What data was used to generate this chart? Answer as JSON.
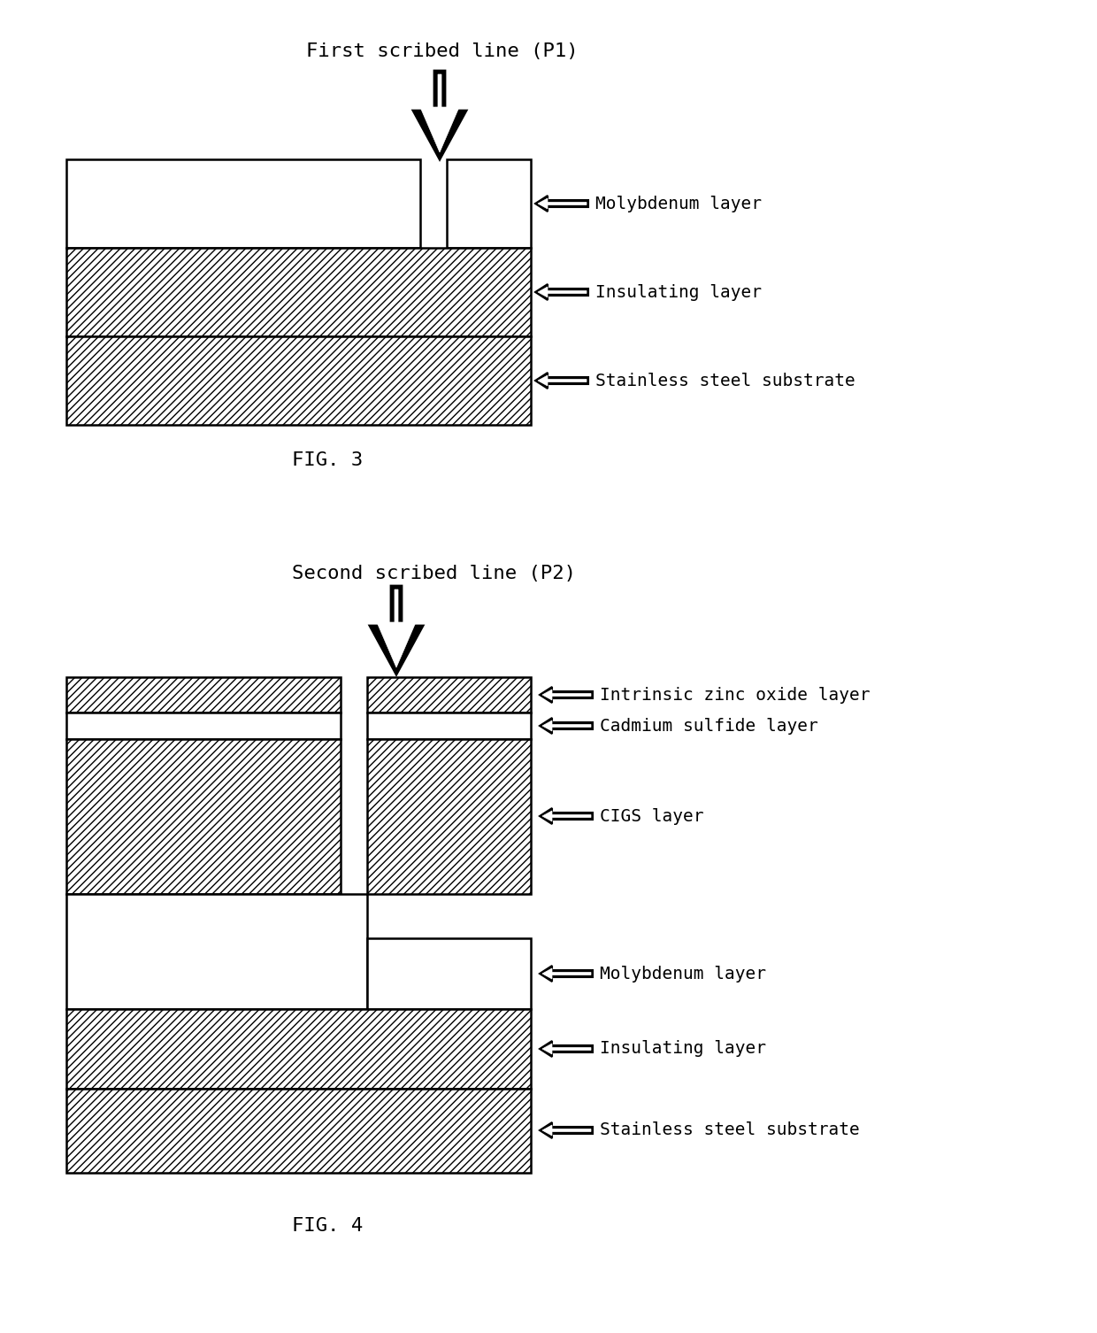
{
  "fig3_title": "First scribed line (P1)",
  "fig4_title": "Second scribed line (P2)",
  "fig3_label": "FIG. 3",
  "fig4_label": "FIG. 4",
  "bg_color": "#ffffff",
  "line_color": "#000000"
}
